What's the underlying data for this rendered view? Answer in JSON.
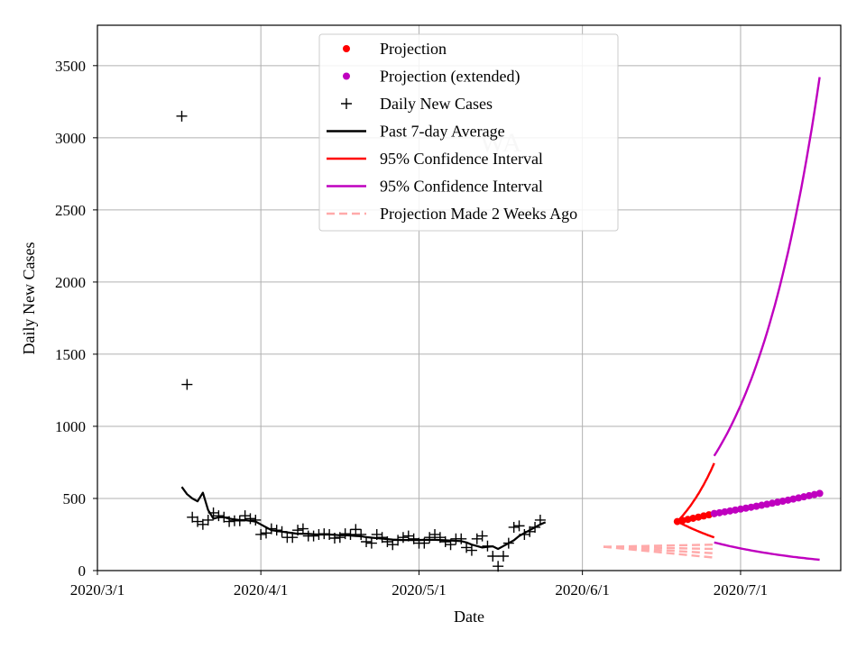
{
  "chart_data": {
    "type": "line",
    "title": "WA",
    "xlabel": "Date",
    "ylabel": "Daily New Cases",
    "x_domain_days": [
      0,
      141
    ],
    "ylim": [
      0,
      3780
    ],
    "grid": true,
    "x_ticks": [
      {
        "day": 0,
        "label": "2020/3/1"
      },
      {
        "day": 31,
        "label": "2020/4/1"
      },
      {
        "day": 61,
        "label": "2020/5/1"
      },
      {
        "day": 92,
        "label": "2020/6/1"
      },
      {
        "day": 122,
        "label": "2020/7/1"
      }
    ],
    "y_ticks": [
      0,
      500,
      1000,
      1500,
      2000,
      2500,
      3000,
      3500
    ],
    "legend_position": "top-center",
    "legend": [
      {
        "label": "Projection",
        "kind": "dot",
        "color": "#ff0000"
      },
      {
        "label": "Projection (extended)",
        "kind": "dot",
        "color": "#bf00bf"
      },
      {
        "label": "Daily New Cases",
        "kind": "plus",
        "color": "#000000"
      },
      {
        "label": "Past 7-day Average",
        "kind": "line",
        "color": "#000000"
      },
      {
        "label": "95% Confidence Interval",
        "kind": "line",
        "color": "#ff0000"
      },
      {
        "label": "95% Confidence Interval",
        "kind": "line",
        "color": "#bf00bf"
      },
      {
        "label": "Projection Made 2 Weeks Ago",
        "kind": "dash",
        "color": "#ffaaaa"
      }
    ],
    "daily_new_cases": {
      "start_day": 16,
      "values": [
        3150,
        1290,
        370,
        340,
        320,
        350,
        400,
        380,
        370,
        340,
        345,
        345,
        380,
        360,
        350,
        250,
        260,
        290,
        280,
        270,
        230,
        230,
        280,
        290,
        240,
        240,
        250,
        255,
        250,
        225,
        230,
        255,
        250,
        285,
        250,
        200,
        190,
        250,
        230,
        200,
        180,
        210,
        230,
        240,
        220,
        190,
        190,
        230,
        250,
        230,
        200,
        180,
        220,
        220,
        160,
        140,
        220,
        240,
        170,
        100,
        30,
        100,
        190,
        300,
        310,
        250,
        270,
        300,
        350
      ]
    },
    "past_7day_average": {
      "start_day": 16,
      "values": [
        580,
        530,
        500,
        480,
        540,
        420,
        360,
        370,
        370,
        360,
        355,
        350,
        350,
        345,
        340,
        320,
        300,
        280,
        275,
        270,
        265,
        260,
        255,
        255,
        255,
        252,
        250,
        250,
        250,
        248,
        245,
        245,
        243,
        240,
        238,
        232,
        228,
        225,
        222,
        218,
        215,
        213,
        212,
        212,
        212,
        212,
        213,
        213,
        213,
        212,
        210,
        208,
        206,
        204,
        195,
        180,
        170,
        160,
        165,
        168,
        150,
        170,
        190,
        210,
        240,
        260,
        280,
        300,
        320,
        335
      ]
    },
    "projection": {
      "start_day": 110,
      "end_day": 117,
      "start_value": 340,
      "end_value": 395
    },
    "projection_extended": {
      "start_day": 117,
      "end_day": 137,
      "start_value": 395,
      "end_value": 535
    },
    "ci_red": {
      "start_day": 110,
      "end_day": 117,
      "upper": [
        340,
        745
      ],
      "lower": [
        340,
        230
      ]
    },
    "ci_purple": {
      "start_day": 117,
      "end_day": 137,
      "upper": [
        795,
        3420
      ],
      "lower": [
        195,
        75
      ]
    },
    "projection_two_weeks_ago": {
      "start_day": 96,
      "end_day": 117,
      "start_value": 165,
      "end_values": [
        180,
        150,
        120,
        90
      ]
    }
  }
}
